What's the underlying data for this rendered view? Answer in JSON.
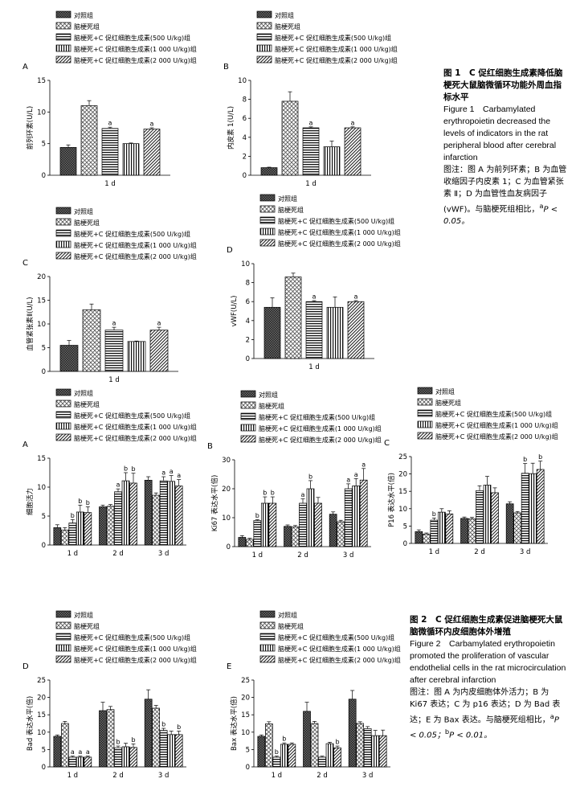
{
  "fig1": {
    "caption": {
      "title_cn": "图 1　C 促红细胞生成素降低脑梗死大鼠脑微循环功能外周血指标水平",
      "title_en": "Figure 1　Carbamylated erythropoietin decreased the levels of indicators in the rat peripheral blood after cerebral infarction",
      "note_prefix": "图注：图 A 为前列环素；B 为血管收缩因子内皮素 1；C 为血管紧张素 Ⅱ；D 为血管性血友病因子(vWF)。与脑梗死组相比，",
      "note_sup": "a",
      "note_suffix": "P < 0.05。"
    }
  },
  "fig2": {
    "caption": {
      "title_cn": "图 2　C 促红细胞生成素促进脑梗死大鼠脑微循环内皮细胞体外增殖",
      "title_en": "Figure 2　Carbamylated erythropoietin promoted the proliferation of vascular endothelial cells in the rat microcirculation after cerebral infarction",
      "note_prefix": "图注：图 A 为内皮细胞体外活力；B 为 Ki67 表达；C 为 p16 表达；D 为 Bad 表达；E 为 Bax 表达。与脑梗死组相比，",
      "note_sup_a": "a",
      "note_mid": "P < 0.05；",
      "note_sup_b": "b",
      "note_end": "P < 0.01。"
    }
  },
  "legend": [
    {
      "label": "对照组",
      "pattern": "checker"
    },
    {
      "label": "脑梗死组",
      "pattern": "cross"
    },
    {
      "label": "脑梗死+C 促红细胞生成素(500 U/kg)组",
      "pattern": "hlines"
    },
    {
      "label": "脑梗死+C 促红细胞生成素(1 000 U/kg)组",
      "pattern": "vlines"
    },
    {
      "label": "脑梗死+C 促红细胞生成素(2 000 U/kg)组",
      "pattern": "diag"
    }
  ],
  "chart_data": [
    {
      "id": "1A",
      "panel_label": "A",
      "type": "bar",
      "ylabel": "前列环素(U/L)",
      "ylim": [
        0,
        15
      ],
      "yticks": [
        0,
        5,
        10,
        15
      ],
      "categories": [
        "1 d"
      ],
      "series": [
        {
          "name": "对照组",
          "values": [
            4.4
          ],
          "err": [
            0.4
          ],
          "sig": [
            ""
          ]
        },
        {
          "name": "脑梗死组",
          "values": [
            11.0
          ],
          "err": [
            0.8
          ],
          "sig": [
            ""
          ]
        },
        {
          "name": "脑梗死+C 促红细胞生成素(500 U/kg)组",
          "values": [
            7.4
          ],
          "err": [
            0.2
          ],
          "sig": [
            "a"
          ]
        },
        {
          "name": "脑梗死+C 促红细胞生成素(1 000 U/kg)组",
          "values": [
            5.0
          ],
          "err": [
            0.1
          ],
          "sig": [
            ""
          ]
        },
        {
          "name": "脑梗死+C 促红细胞生成素(2 000 U/kg)组",
          "values": [
            7.3
          ],
          "err": [
            0.2
          ],
          "sig": [
            "a"
          ]
        }
      ]
    },
    {
      "id": "1B",
      "panel_label": "B",
      "type": "bar",
      "ylabel": "内皮素 1(U/L)",
      "ylim": [
        0,
        10
      ],
      "yticks": [
        0,
        2,
        4,
        6,
        8,
        10
      ],
      "categories": [
        "1 d"
      ],
      "series": [
        {
          "name": "对照组",
          "values": [
            0.8
          ],
          "err": [
            0.05
          ],
          "sig": [
            ""
          ]
        },
        {
          "name": "脑梗死组",
          "values": [
            7.8
          ],
          "err": [
            1.0
          ],
          "sig": [
            ""
          ]
        },
        {
          "name": "脑梗死+C 促红细胞生成素(500 U/kg)组",
          "values": [
            5.0
          ],
          "err": [
            0.1
          ],
          "sig": [
            "a"
          ]
        },
        {
          "name": "脑梗死+C 促红细胞生成素(1 000 U/kg)组",
          "values": [
            3.0
          ],
          "err": [
            0.6
          ],
          "sig": [
            ""
          ]
        },
        {
          "name": "脑梗死+C 促红细胞生成素(2 000 U/kg)组",
          "values": [
            5.0
          ],
          "err": [
            0.1
          ],
          "sig": [
            "a"
          ]
        }
      ]
    },
    {
      "id": "1C",
      "panel_label": "C",
      "type": "bar",
      "ylabel": "血管紧张素Ⅱ(U/L)",
      "ylim": [
        0,
        20
      ],
      "yticks": [
        0,
        5,
        10,
        15,
        20
      ],
      "categories": [
        "1 d"
      ],
      "series": [
        {
          "name": "对照组",
          "values": [
            5.5
          ],
          "err": [
            1.0
          ],
          "sig": [
            ""
          ]
        },
        {
          "name": "脑梗死组",
          "values": [
            13.0
          ],
          "err": [
            1.2
          ],
          "sig": [
            ""
          ]
        },
        {
          "name": "脑梗死+C 促红细胞生成素(500 U/kg)组",
          "values": [
            8.7
          ],
          "err": [
            0.6
          ],
          "sig": [
            "a"
          ]
        },
        {
          "name": "脑梗死+C 促红细胞生成素(1 000 U/kg)组",
          "values": [
            6.3
          ],
          "err": [
            0.1
          ],
          "sig": [
            ""
          ]
        },
        {
          "name": "脑梗死+C 促红细胞生成素(2 000 U/kg)组",
          "values": [
            8.7
          ],
          "err": [
            0.6
          ],
          "sig": [
            "a"
          ]
        }
      ]
    },
    {
      "id": "1D",
      "panel_label": "D",
      "type": "bar",
      "ylabel": "vWF(U/L)",
      "ylim": [
        0,
        10
      ],
      "yticks": [
        0,
        2,
        4,
        6,
        8,
        10
      ],
      "categories": [
        "1 d"
      ],
      "series": [
        {
          "name": "对照组",
          "values": [
            5.4
          ],
          "err": [
            1.0
          ],
          "sig": [
            ""
          ]
        },
        {
          "name": "脑梗死组",
          "values": [
            8.6
          ],
          "err": [
            0.4
          ],
          "sig": [
            ""
          ]
        },
        {
          "name": "脑梗死+C 促红细胞生成素(500 U/kg)组",
          "values": [
            6.0
          ],
          "err": [
            0.1
          ],
          "sig": [
            "a"
          ]
        },
        {
          "name": "脑梗死+C 促红细胞生成素(1 000 U/kg)组",
          "values": [
            5.4
          ],
          "err": [
            1.1
          ],
          "sig": [
            ""
          ]
        },
        {
          "name": "脑梗死+C 促红细胞生成素(2 000 U/kg)组",
          "values": [
            6.0
          ],
          "err": [
            0.1
          ],
          "sig": [
            "a"
          ]
        }
      ]
    },
    {
      "id": "2A",
      "panel_label": "A",
      "type": "bar",
      "ylabel": "细胞活力",
      "ylim": [
        0,
        15
      ],
      "yticks": [
        0,
        5,
        10,
        15
      ],
      "categories": [
        "1 d",
        "2 d",
        "3 d"
      ],
      "series": [
        {
          "name": "对照组",
          "values": [
            3.0,
            6.6,
            11.2
          ],
          "err": [
            0.5,
            0.3,
            0.6
          ],
          "sig": [
            "",
            "",
            ""
          ]
        },
        {
          "name": "脑梗死组",
          "values": [
            2.6,
            6.7,
            8.6
          ],
          "err": [
            0.4,
            0.3,
            0.4
          ],
          "sig": [
            "",
            "",
            ""
          ]
        },
        {
          "name": "脑梗死+C 促红细胞生成素(500 U/kg)组",
          "values": [
            3.8,
            9.2,
            11.1
          ],
          "err": [
            0.6,
            0.5,
            0.7
          ],
          "sig": [
            "b",
            "a",
            "a"
          ]
        },
        {
          "name": "脑梗死+C 促红细胞生成素(1 000 U/kg)组",
          "values": [
            5.7,
            11.1,
            11.0
          ],
          "err": [
            1.2,
            1.4,
            1.0
          ],
          "sig": [
            "b",
            "b",
            "a"
          ]
        },
        {
          "name": "脑梗死+C 促红细胞生成素(2 000 U/kg)组",
          "values": [
            5.6,
            10.7,
            10.2
          ],
          "err": [
            1.0,
            1.7,
            1.1
          ],
          "sig": [
            "b",
            "b",
            "a"
          ]
        }
      ]
    },
    {
      "id": "2B",
      "panel_label": "B",
      "type": "bar",
      "ylabel": "Ki67 表达水平(倍)",
      "ylim": [
        0,
        30
      ],
      "yticks": [
        0,
        10,
        20,
        30
      ],
      "categories": [
        "1 d",
        "2 d",
        "3 d"
      ],
      "series": [
        {
          "name": "对照组",
          "values": [
            3.2,
            7.0,
            11.2
          ],
          "err": [
            0.6,
            0.5,
            0.8
          ],
          "sig": [
            "",
            "",
            ""
          ]
        },
        {
          "name": "脑梗死组",
          "values": [
            2.5,
            6.8,
            8.6
          ],
          "err": [
            0.4,
            0.5,
            0.5
          ],
          "sig": [
            "",
            "",
            ""
          ]
        },
        {
          "name": "脑梗死+C 促红细胞生成素(500 U/kg)组",
          "values": [
            9.0,
            15.0,
            20.0
          ],
          "err": [
            0.3,
            1.5,
            1.7
          ],
          "sig": [
            "b",
            "a",
            "a"
          ]
        },
        {
          "name": "脑梗死+C 促红细胞生成素(1 000 U/kg)组",
          "values": [
            15.0,
            20.0,
            21.0
          ],
          "err": [
            2.2,
            2.8,
            2.5
          ],
          "sig": [
            "b",
            "b",
            "a"
          ]
        },
        {
          "name": "脑梗死+C 促红细胞生成素(2 000 U/kg)组",
          "values": [
            15.0,
            15.0,
            23.0
          ],
          "err": [
            2.2,
            2.0,
            4.0
          ],
          "sig": [
            "b",
            "",
            "a"
          ]
        }
      ]
    },
    {
      "id": "2C",
      "panel_label": "C",
      "type": "bar",
      "ylabel": "P16 表达水平(倍)",
      "ylim": [
        0,
        25
      ],
      "yticks": [
        0,
        5,
        10,
        15,
        20,
        25
      ],
      "categories": [
        "1 d",
        "2 d",
        "3 d"
      ],
      "series": [
        {
          "name": "对照组",
          "values": [
            3.4,
            7.2,
            11.4
          ],
          "err": [
            0.5,
            0.4,
            0.6
          ],
          "sig": [
            "",
            "",
            ""
          ]
        },
        {
          "name": "脑梗死组",
          "values": [
            2.7,
            7.1,
            8.8
          ],
          "err": [
            0.3,
            0.4,
            0.4
          ],
          "sig": [
            "",
            "",
            ""
          ]
        },
        {
          "name": "脑梗死+C 促红细胞生成素(500 U/kg)组",
          "values": [
            6.7,
            15.2,
            20.2
          ],
          "err": [
            0.6,
            1.4,
            2.8
          ],
          "sig": [
            "b",
            "",
            "b"
          ]
        },
        {
          "name": "脑梗死+C 促红细胞生成素(1 000 U/kg)组",
          "values": [
            9.0,
            16.8,
            20.1
          ],
          "err": [
            1.0,
            2.5,
            3.0
          ],
          "sig": [
            "",
            "",
            ""
          ]
        },
        {
          "name": "脑梗死+C 促红细胞生成素(2 000 U/kg)组",
          "values": [
            8.5,
            14.6,
            21.3
          ],
          "err": [
            0.9,
            1.4,
            2.4
          ],
          "sig": [
            "",
            "",
            "b"
          ]
        }
      ]
    },
    {
      "id": "2D",
      "panel_label": "D",
      "type": "bar",
      "ylabel": "Bad 表达水平(倍)",
      "ylim": [
        0,
        25
      ],
      "yticks": [
        0,
        5,
        10,
        15,
        20,
        25
      ],
      "categories": [
        "1 d",
        "2 d",
        "3 d"
      ],
      "series": [
        {
          "name": "对照组",
          "values": [
            8.8,
            16.2,
            19.5
          ],
          "err": [
            0.4,
            2.4,
            2.7
          ],
          "sig": [
            "",
            "",
            ""
          ]
        },
        {
          "name": "脑梗死组",
          "values": [
            12.5,
            16.5,
            16.9
          ],
          "err": [
            0.6,
            0.9,
            0.8
          ],
          "sig": [
            "",
            "",
            ""
          ]
        },
        {
          "name": "脑梗死+C 促红细胞生成素(500 U/kg)组",
          "values": [
            2.8,
            5.5,
            10.5
          ],
          "err": [
            0.3,
            0.5,
            0.6
          ],
          "sig": [
            "a",
            "b",
            "b"
          ]
        },
        {
          "name": "脑梗死+C 促红细胞生成素(1 000 U/kg)组",
          "values": [
            2.8,
            5.8,
            9.3
          ],
          "err": [
            0.3,
            1.0,
            1.0
          ],
          "sig": [
            "a",
            "",
            ""
          ]
        },
        {
          "name": "脑梗死+C 促红细胞生成素(2 000 U/kg)组",
          "values": [
            2.8,
            5.6,
            9.3
          ],
          "err": [
            0.3,
            1.0,
            1.0
          ],
          "sig": [
            "a",
            "b",
            "b"
          ]
        }
      ]
    },
    {
      "id": "2E",
      "panel_label": "E",
      "type": "bar",
      "ylabel": "Bax 表达水平(倍)",
      "ylim": [
        0,
        25
      ],
      "yticks": [
        0,
        5,
        10,
        15,
        20,
        25
      ],
      "categories": [
        "1 d",
        "2 d",
        "3 d"
      ],
      "series": [
        {
          "name": "对照组",
          "values": [
            8.8,
            16.0,
            19.5
          ],
          "err": [
            0.4,
            2.6,
            2.5
          ],
          "sig": [
            "",
            "",
            ""
          ]
        },
        {
          "name": "脑梗死组",
          "values": [
            12.4,
            12.5,
            12.5
          ],
          "err": [
            0.6,
            0.6,
            0.5
          ],
          "sig": [
            "",
            "",
            ""
          ]
        },
        {
          "name": "脑梗死+C 促红细胞生成素(500 U/kg)组",
          "values": [
            2.8,
            2.8,
            11.0
          ],
          "err": [
            0.3,
            0.3,
            0.6
          ],
          "sig": [
            "b",
            "",
            ""
          ]
        },
        {
          "name": "脑梗死+C 促红细胞生成素(1 000 U/kg)组",
          "values": [
            6.5,
            6.7,
            9.0
          ],
          "err": [
            0.4,
            0.4,
            1.5
          ],
          "sig": [
            "b",
            "",
            ""
          ]
        },
        {
          "name": "脑梗死+C 促红细胞生成素(2 000 U/kg)组",
          "values": [
            6.5,
            5.5,
            9.0
          ],
          "err": [
            0.4,
            0.5,
            1.6
          ],
          "sig": [
            "",
            "b",
            ""
          ]
        }
      ]
    }
  ]
}
